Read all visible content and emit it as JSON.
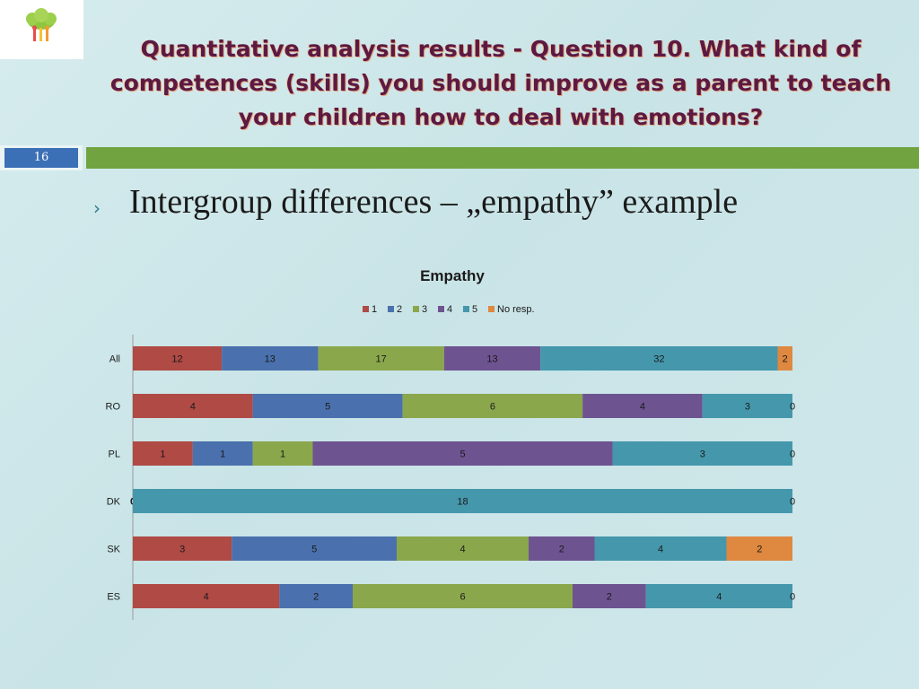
{
  "slide": {
    "title": "Quantitative analysis results - Question 10. What kind of competences (skills) you should improve as a parent to teach your children how to deal with emotions?",
    "page_number": "16",
    "bullet": "Intergroup differences – „empathy” example"
  },
  "colors": {
    "title": "#5a1a44",
    "page_number_box": "#3b6fb6",
    "green_band": "#71a340"
  },
  "chart_data": {
    "type": "bar",
    "orientation": "horizontal",
    "stacked": true,
    "normalized_100_percent": true,
    "title": "Empathy",
    "categories": [
      "All",
      "RO",
      "PL",
      "DK",
      "SK",
      "ES"
    ],
    "series": [
      {
        "name": "1",
        "color": "#b04a45",
        "values": [
          12,
          4,
          1,
          0,
          3,
          4
        ]
      },
      {
        "name": "2",
        "color": "#4a71ad",
        "values": [
          13,
          5,
          1,
          0,
          5,
          2
        ]
      },
      {
        "name": "3",
        "color": "#8ba74c",
        "values": [
          17,
          6,
          1,
          0,
          4,
          6
        ]
      },
      {
        "name": "4",
        "color": "#6e5391",
        "values": [
          13,
          4,
          5,
          0,
          2,
          2
        ]
      },
      {
        "name": "5",
        "color": "#4597ac",
        "values": [
          32,
          3,
          3,
          18,
          4,
          4
        ]
      },
      {
        "name": "No resp.",
        "color": "#de8840",
        "values": [
          2,
          0,
          0,
          0,
          2,
          0
        ]
      }
    ],
    "legend": "top",
    "grid": false
  }
}
